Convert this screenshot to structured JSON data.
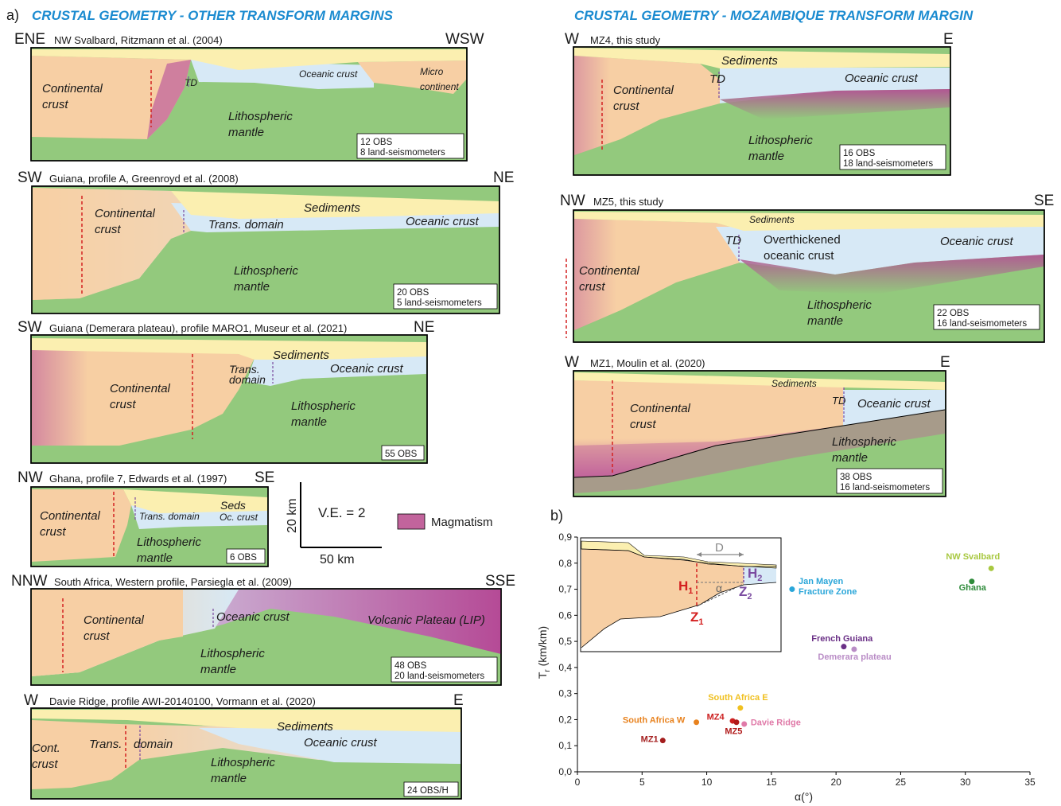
{
  "panel_a": {
    "letter": "a)",
    "title_left": "CRUSTAL GEOMETRY - OTHER TRANSFORM MARGINS",
    "title_right": "CRUSTAL GEOMETRY - MOZAMBIQUE TRANSFORM MARGIN"
  },
  "sections": {
    "svalbard": {
      "left": "ENE",
      "right": "WSW",
      "caption": "NW Svalbard, Ritzmann et al. (2004)",
      "continental": "Continental",
      "crust": "crust",
      "td": "TD",
      "oceanic": "Oceanic crust",
      "micro1": "Micro",
      "micro2": "continent",
      "mantle1": "Lithospheric",
      "mantle2": "mantle",
      "stations1": "12 OBS",
      "stations2": "8 land-seismometers"
    },
    "guiana_a": {
      "left": "SW",
      "right": "NE",
      "caption": "Guiana, profile A, Greenroyd et al. (2008)",
      "continental": "Continental",
      "crust": "crust",
      "sediments": "Sediments",
      "trans": "Trans. domain",
      "oceanic": "Oceanic crust",
      "mantle1": "Lithospheric",
      "mantle2": "mantle",
      "stations1": "20 OBS",
      "stations2": "5 land-seismometers"
    },
    "demerara": {
      "left": "SW",
      "right": "NE",
      "caption": "Guiana (Demerara plateau), profile MARO1, Museur et al. (2021)",
      "continental": "Continental",
      "crust": "crust",
      "sediments": "Sediments",
      "trans1": "Trans.",
      "trans2": "domain",
      "oceanic": "Oceanic crust",
      "mantle1": "Lithospheric",
      "mantle2": "mantle",
      "stations1": "55 OBS"
    },
    "ghana": {
      "left": "NW",
      "right": "SE",
      "caption": "Ghana, profile 7, Edwards et al. (1997)",
      "continental": "Continental",
      "crust": "crust",
      "seds": "Seds",
      "trans": "Trans. domain",
      "oc": "Oc. crust",
      "mantle1": "Lithospheric",
      "mantle2": "mantle",
      "stations1": "6 OBS"
    },
    "south_africa": {
      "left": "NNW",
      "right": "SSE",
      "caption": "South Africa, Western profile, Parsiegla et al. (2009)",
      "continental": "Continental",
      "crust": "crust",
      "oceanic": "Oceanic crust",
      "lip": "Volcanic Plateau (LIP)",
      "mantle1": "Lithospheric",
      "mantle2": "mantle",
      "stations1": "48 OBS",
      "stations2": "20 land-seismometers"
    },
    "davie": {
      "left": "W",
      "right": "E",
      "caption": "Davie Ridge, profile AWI-20140100, Vormann et al. (2020)",
      "cont": "Cont.",
      "crust": "crust",
      "trans": "Trans.",
      "domain": "domain",
      "sediments": "Sediments",
      "oceanic": "Oceanic crust",
      "mantle1": "Lithospheric",
      "mantle2": "mantle",
      "stations1": "24 OBS/H"
    },
    "mz4": {
      "left": "W",
      "right": "E",
      "caption": "MZ4, this study",
      "sediments": "Sediments",
      "td": "TD",
      "oceanic": "Oceanic crust",
      "continental": "Continental",
      "crust": "crust",
      "mantle1": "Lithospheric",
      "mantle2": "mantle",
      "stations1": "16 OBS",
      "stations2": "18 land-seismometers"
    },
    "mz5": {
      "left": "NW",
      "right": "SE",
      "caption": "MZ5, this study",
      "sediments": "Sediments",
      "td": "TD",
      "over1": "Overthickened",
      "over2": "oceanic crust",
      "oceanic": "Oceanic crust",
      "continental": "Continental",
      "crust": "crust",
      "mantle1": "Lithospheric",
      "mantle2": "mantle",
      "stations1": "22 OBS",
      "stations2": "16 land-seismometers"
    },
    "mz1": {
      "left": "W",
      "right": "E",
      "caption": "MZ1, Moulin et al. (2020)",
      "sediments": "Sediments",
      "td": "TD",
      "oceanic": "Oceanic crust",
      "continental": "Continental",
      "crust": "crust",
      "mantle1": "Lithospheric",
      "mantle2": "mantle",
      "stations1": "38 OBS",
      "stations2": "16 land-seismometers"
    }
  },
  "scale_bar": {
    "vertical": "20 km",
    "horizontal": "50 km",
    "ve": "V.E. = 2"
  },
  "legend": {
    "magmatism": "Magmatism",
    "color": "#c2649c"
  },
  "colors": {
    "continental": "#f7cfa4",
    "oceanic": "#d7e9f6",
    "mantle": "#93c97d",
    "sediments": "#fbefb0",
    "magmatism": "#b54a96",
    "title": "#1b8bd0"
  },
  "panel_b": {
    "letter": "b)",
    "inset": {
      "D": "D",
      "H1": "H",
      "H1_sub": "1",
      "H2": "H",
      "H2_sub": "2",
      "alpha": "α",
      "Z1": "Z",
      "Z1_sub": "1",
      "Z2": "Z",
      "Z2_sub": "2"
    }
  },
  "chart_data": {
    "type": "scatter",
    "xlabel": "α(°)",
    "ylabel": "T",
    "ylabel_sub": "r",
    "ylabel_unit": " (km/km)",
    "xlim": [
      0,
      35
    ],
    "ylim": [
      0,
      0.9
    ],
    "xticks": [
      "0",
      "5",
      "10",
      "15",
      "20",
      "25",
      "30",
      "35"
    ],
    "yticks": [
      "0,0",
      "0,1",
      "0,2",
      "0,3",
      "0,4",
      "0,5",
      "0,6",
      "0,7",
      "0,8",
      "0,9"
    ],
    "grid": false,
    "points": [
      {
        "label": "NW Svalbard",
        "x": 32.0,
        "y": 0.78,
        "color": "#a8c840",
        "lx": -3.5,
        "ly": 0.035,
        "lines": [
          "NW Svalbard"
        ]
      },
      {
        "label": "Ghana",
        "x": 30.5,
        "y": 0.73,
        "color": "#2e8b3a",
        "lx": -1.0,
        "ly": -0.035,
        "lines": [
          "Ghana"
        ]
      },
      {
        "label": "Jan Mayen Fracture Zone",
        "x": 16.6,
        "y": 0.7,
        "color": "#2aa6d9",
        "lx": 0.5,
        "ly": 0.02,
        "lines": [
          "Jan Mayen",
          "Fracture Zone"
        ]
      },
      {
        "label": "French Guiana",
        "x": 20.6,
        "y": 0.48,
        "color": "#6a2f86",
        "lx": -2.5,
        "ly": 0.02,
        "lines": [
          "French Guiana"
        ]
      },
      {
        "label": "Demerara plateau",
        "x": 21.4,
        "y": 0.47,
        "color": "#b98cc6",
        "lx": -2.8,
        "ly": -0.04,
        "lines": [
          "Demerara plateau"
        ]
      },
      {
        "label": "South Africa E",
        "x": 12.6,
        "y": 0.245,
        "color": "#f0c020",
        "lx": -2.5,
        "ly": 0.03,
        "lines": [
          "South Africa E"
        ]
      },
      {
        "label": "South Africa W",
        "x": 9.2,
        "y": 0.19,
        "color": "#e8821e",
        "lx": -5.7,
        "ly": -0.003,
        "lines": [
          "South Africa W"
        ]
      },
      {
        "label": "MZ4",
        "x": 12.0,
        "y": 0.195,
        "color": "#cc1f1f",
        "lx": -2.0,
        "ly": 0.005,
        "lines": [
          "MZ4"
        ]
      },
      {
        "label": "MZ5",
        "x": 12.3,
        "y": 0.19,
        "color": "#b01a1a",
        "lx": -0.9,
        "ly": -0.045,
        "lines": [
          "MZ5"
        ]
      },
      {
        "label": "Davie Ridge",
        "x": 12.9,
        "y": 0.183,
        "color": "#e07aa8",
        "lx": 0.5,
        "ly": -0.005,
        "lines": [
          "Davie Ridge"
        ]
      },
      {
        "label": "MZ1",
        "x": 6.6,
        "y": 0.12,
        "color": "#a41e1e",
        "lx": -1.7,
        "ly": -0.005,
        "lines": [
          "MZ1"
        ]
      }
    ]
  }
}
